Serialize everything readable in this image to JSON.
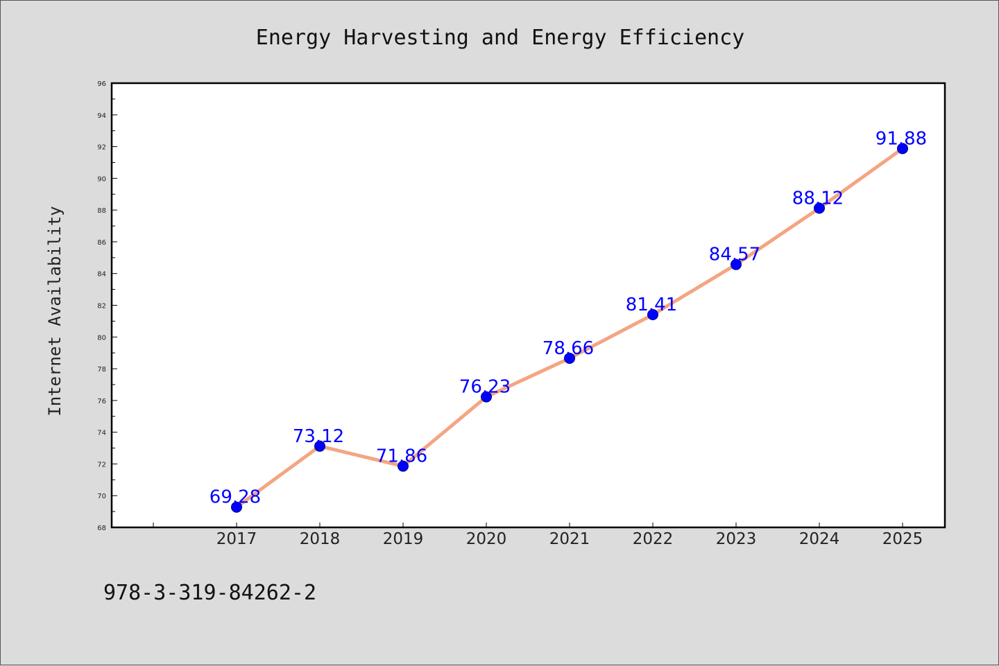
{
  "chart_data": {
    "type": "line",
    "title": "Energy Harvesting and Energy Efficiency",
    "xlabel": "",
    "ylabel": "Internet Availability",
    "categories": [
      "2017",
      "2018",
      "2019",
      "2020",
      "2021",
      "2022",
      "2023",
      "2024",
      "2025"
    ],
    "series": [
      {
        "values": [
          69.28,
          73.12,
          71.86,
          76.23,
          78.66,
          81.41,
          84.57,
          88.12,
          91.88
        ],
        "labels": [
          "69.28",
          "73.12",
          "71.86",
          "76.23",
          "78.66",
          "81.41",
          "84.57",
          "88.12",
          "91.88"
        ],
        "line_color": "#f4a582",
        "marker_color": "#0000ff",
        "label_color": "#0000ff"
      }
    ],
    "ylim": [
      68,
      96
    ],
    "yticks": [
      "68",
      "70",
      "72",
      "74",
      "76",
      "78",
      "80",
      "82",
      "84",
      "86",
      "88",
      "90",
      "92",
      "94",
      "96"
    ],
    "grid": false,
    "legend": "none"
  },
  "footer": {
    "isbn": "978-3-319-84262-2"
  },
  "colors": {
    "background": "#dcdcdc",
    "plot_background": "#ffffff",
    "axis": "#000000"
  }
}
